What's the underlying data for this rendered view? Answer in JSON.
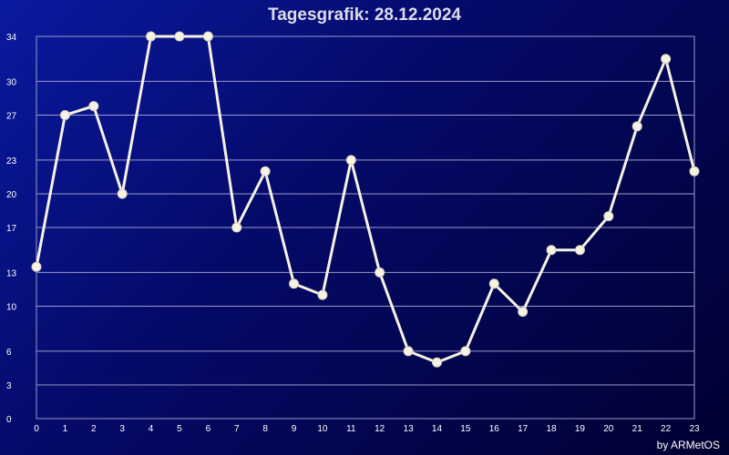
{
  "chart_data": {
    "type": "line",
    "title": "Tagesgrafik: 28.12.2024",
    "credit": "by ARMetOS",
    "x": [
      0,
      1,
      2,
      3,
      4,
      5,
      6,
      7,
      8,
      9,
      10,
      11,
      12,
      13,
      14,
      15,
      16,
      17,
      18,
      19,
      20,
      21,
      22,
      23
    ],
    "x_ticks": [
      "0",
      "1",
      "2",
      "3",
      "4",
      "5",
      "6",
      "7",
      "8",
      "9",
      "10",
      "11",
      "12",
      "13",
      "14",
      "15",
      "16",
      "17",
      "18",
      "19",
      "20",
      "21",
      "22",
      "23"
    ],
    "y_ticks": [
      0,
      3,
      6,
      10,
      13,
      17,
      20,
      23,
      27,
      30,
      34
    ],
    "ylim": [
      0,
      34
    ],
    "xlim": [
      0,
      23
    ],
    "series": [
      {
        "values": [
          13.5,
          27,
          27.8,
          20,
          34,
          34,
          34,
          17,
          22,
          12,
          11,
          23,
          13,
          6,
          5,
          6,
          12,
          9.5,
          15,
          15,
          18,
          26,
          32,
          22
        ],
        "color": "#f6f2e4"
      }
    ],
    "grid": true,
    "colors": {
      "background_start": "#0a1aa0",
      "background_end": "#000030",
      "gridline": "#9a9acc",
      "line": "#f6f2e4"
    }
  }
}
